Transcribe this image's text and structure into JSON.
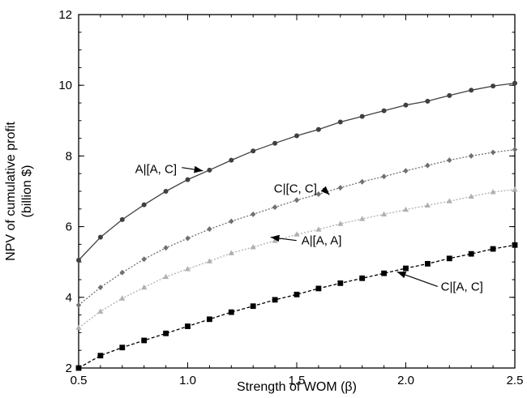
{
  "chart_data": {
    "type": "line",
    "xlabel": "Strength of WOM (β)",
    "ylabel": [
      "NPV of cumulative profit",
      "(billion $)"
    ],
    "xlim": [
      0.5,
      2.5
    ],
    "ylim": [
      2,
      12
    ],
    "xticks": [
      "0.5",
      "1.0",
      "1.5",
      "2.0",
      "2.5"
    ],
    "yticks": [
      "2",
      "4",
      "6",
      "8",
      "10",
      "12"
    ],
    "grid": false,
    "x": [
      0.5,
      0.6,
      0.7,
      0.8,
      0.9,
      1.0,
      1.1,
      1.2,
      1.3,
      1.4,
      1.5,
      1.6,
      1.7,
      1.8,
      1.9,
      2.0,
      2.1,
      2.2,
      2.3,
      2.4,
      2.5
    ],
    "series": [
      {
        "name": "A|[A, C]",
        "color": "#404040",
        "dash": "solid",
        "marker": "circle",
        "values": [
          5.05,
          5.7,
          6.2,
          6.62,
          7.0,
          7.33,
          7.6,
          7.88,
          8.14,
          8.36,
          8.57,
          8.75,
          8.96,
          9.12,
          9.28,
          9.44,
          9.55,
          9.71,
          9.86,
          9.98,
          10.06
        ]
      },
      {
        "name": "C|[C, C]",
        "color": "#707070",
        "dash": "dotted",
        "marker": "diamond",
        "values": [
          3.78,
          4.28,
          4.7,
          5.08,
          5.4,
          5.67,
          5.93,
          6.15,
          6.35,
          6.55,
          6.75,
          6.92,
          7.1,
          7.27,
          7.42,
          7.58,
          7.73,
          7.88,
          8.0,
          8.1,
          8.18
        ]
      },
      {
        "name": "A|[A, A]",
        "color": "#b0b0b0",
        "dash": "dotted",
        "marker": "triangle",
        "values": [
          3.14,
          3.6,
          3.97,
          4.28,
          4.58,
          4.8,
          5.02,
          5.25,
          5.42,
          5.6,
          5.78,
          5.92,
          6.08,
          6.22,
          6.35,
          6.48,
          6.6,
          6.72,
          6.85,
          6.98,
          7.05
        ]
      },
      {
        "name": "C|[A, C]",
        "color": "#000000",
        "dash": "dashed",
        "marker": "square",
        "values": [
          2.0,
          2.35,
          2.58,
          2.78,
          2.98,
          3.18,
          3.38,
          3.58,
          3.75,
          3.93,
          4.08,
          4.25,
          4.4,
          4.54,
          4.68,
          4.82,
          4.95,
          5.1,
          5.23,
          5.37,
          5.48
        ]
      }
    ],
    "annotations": [
      {
        "series": "A|[A, C]",
        "text": "A|[A, C]",
        "point_x": 1.07,
        "point_y": 7.58
      },
      {
        "series": "C|[C, C]",
        "text": "C|[C, C]",
        "point_x": 1.65,
        "point_y": 6.9
      },
      {
        "series": "A|[A, A]",
        "text": "A|[A, A]",
        "point_x": 1.38,
        "point_y": 5.7
      },
      {
        "series": "C|[A, C]",
        "text": "C|[A, C]",
        "point_x": 1.96,
        "point_y": 4.72
      }
    ]
  }
}
